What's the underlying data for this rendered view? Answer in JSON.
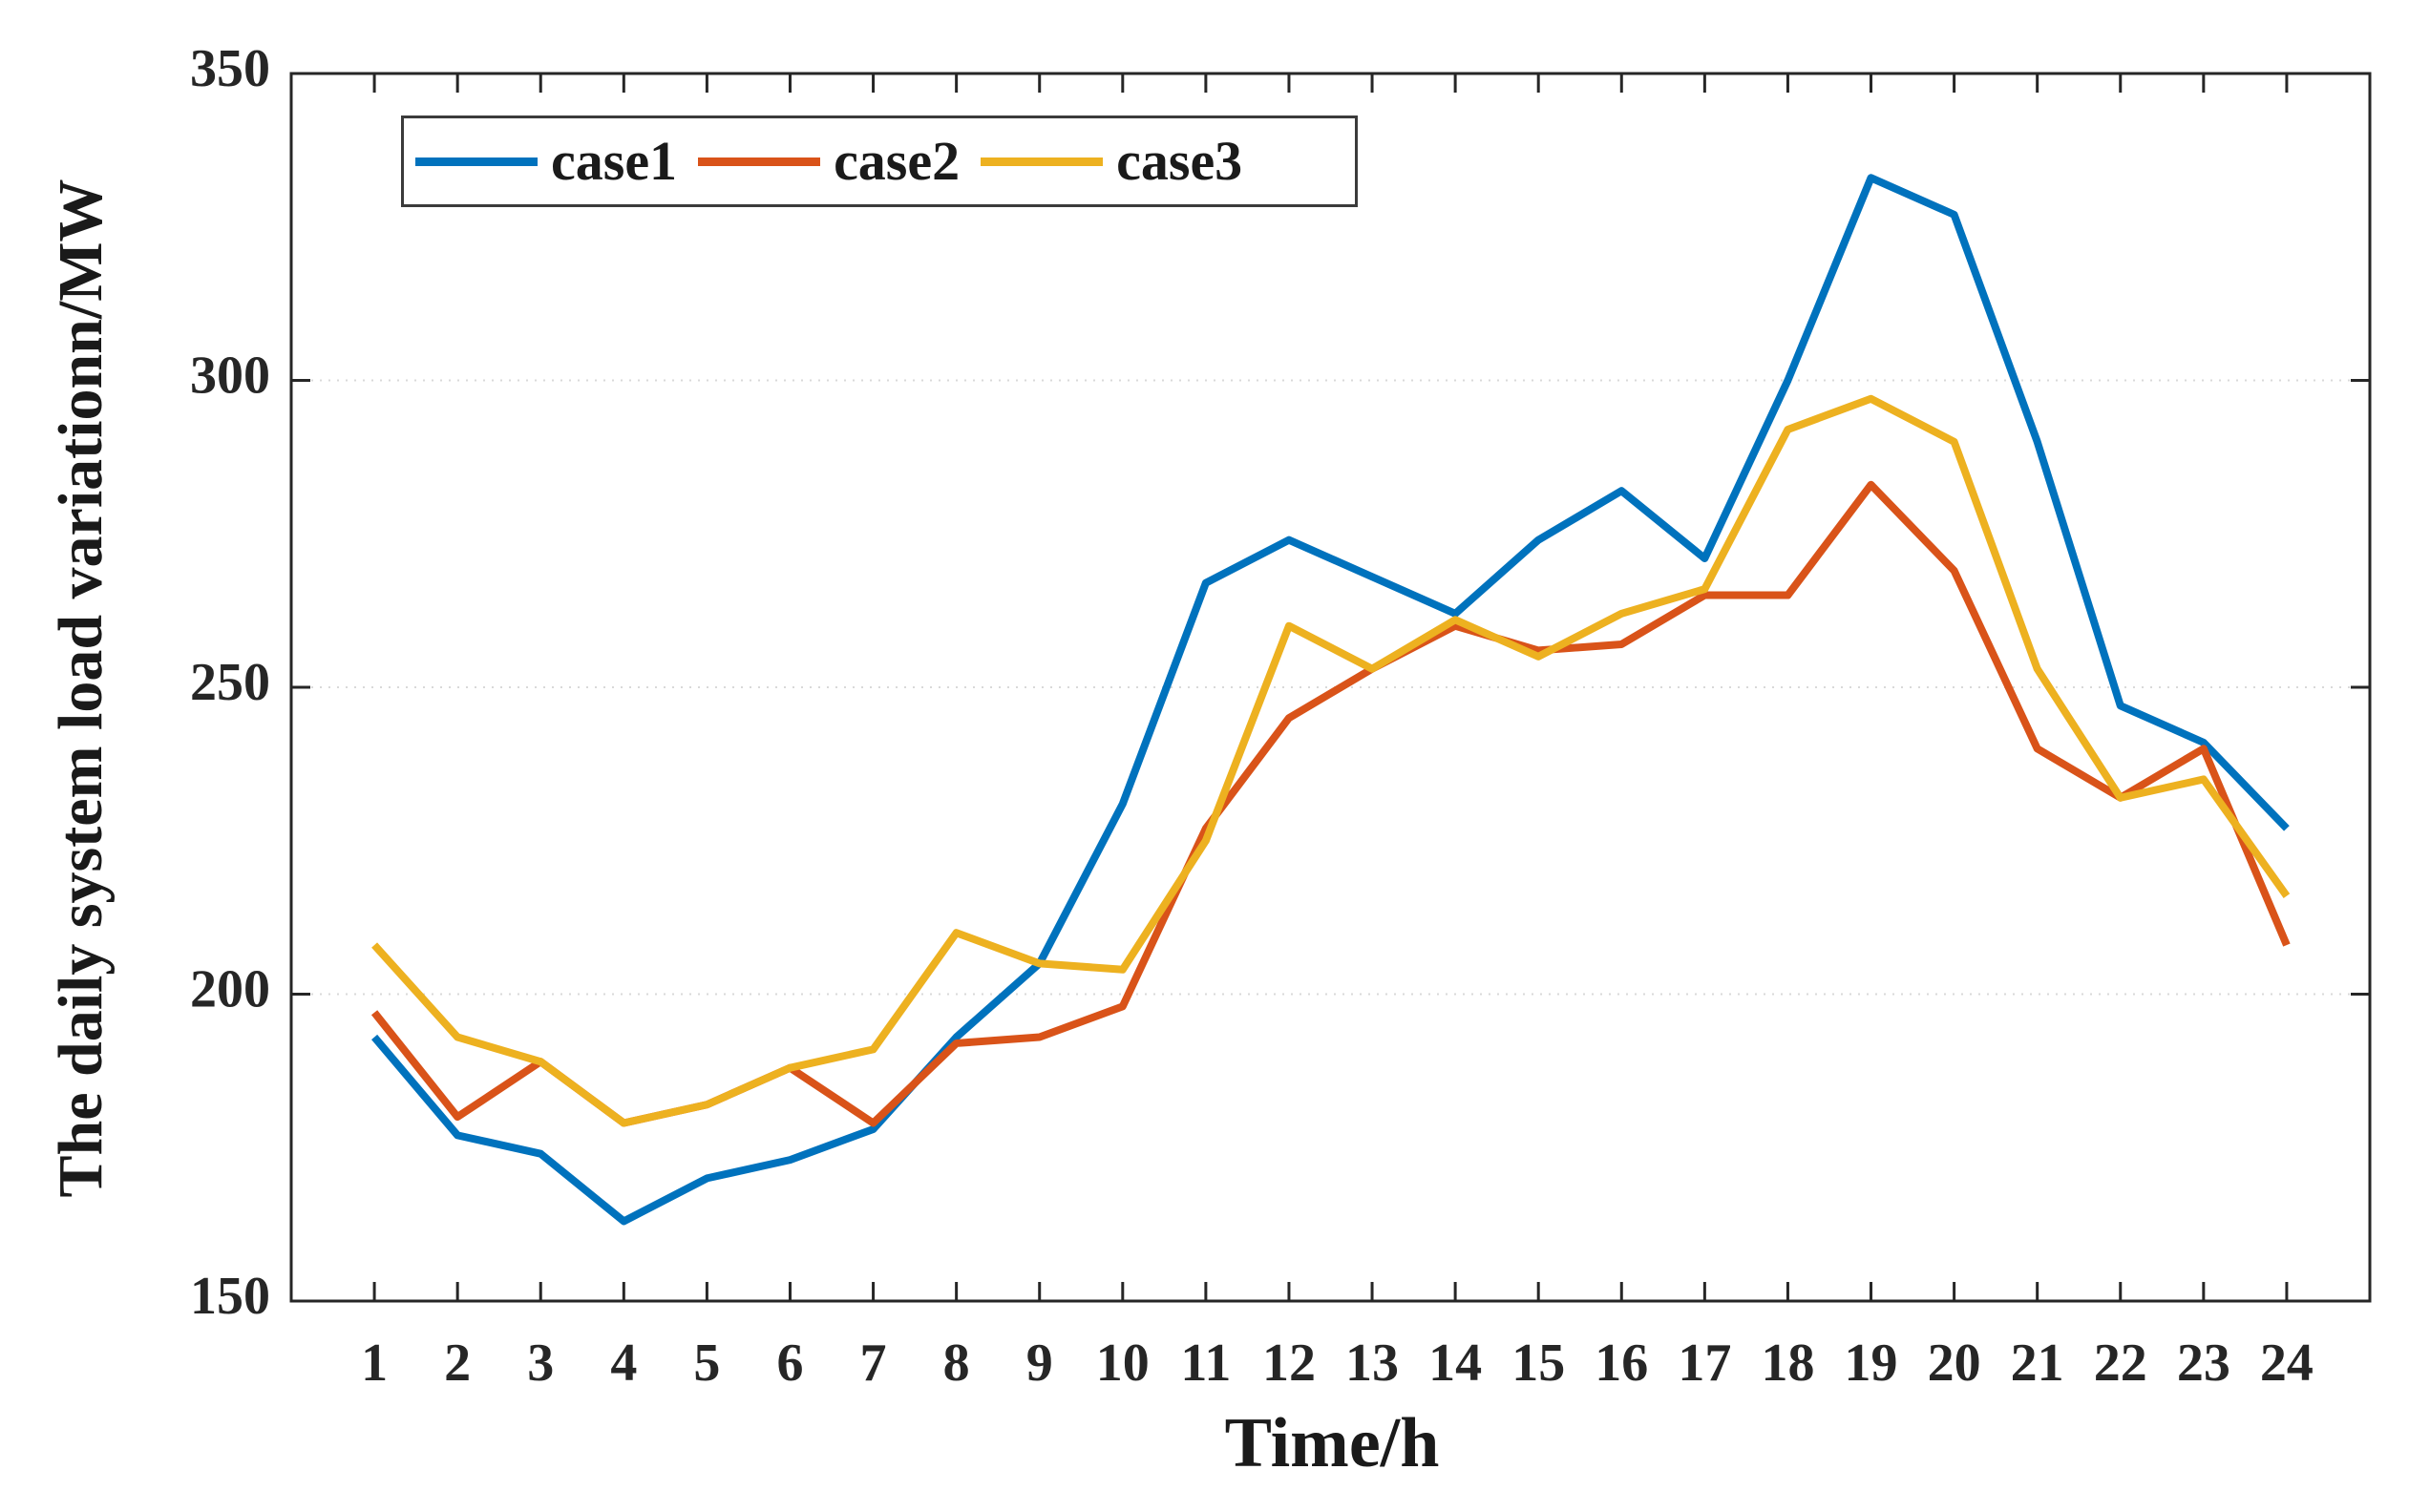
{
  "figure": {
    "background": "#ffffff",
    "frame_color": "#262626",
    "grid_color": "#d9d9d9",
    "text_color": "#1a1a1a"
  },
  "chart_data": {
    "type": "line",
    "title": "",
    "xlabel": "Time/h",
    "ylabel": "The daily system load variationn/MW",
    "x": [
      1,
      2,
      3,
      4,
      5,
      6,
      7,
      8,
      9,
      10,
      11,
      12,
      13,
      14,
      15,
      16,
      17,
      18,
      19,
      20,
      21,
      22,
      23,
      24
    ],
    "x_ticks": [
      1,
      2,
      3,
      4,
      5,
      6,
      7,
      8,
      9,
      10,
      11,
      12,
      13,
      14,
      15,
      16,
      17,
      18,
      19,
      20,
      21,
      22,
      23,
      24
    ],
    "y_ticks": [
      150,
      200,
      250,
      300,
      350
    ],
    "grid_y": [
      200,
      250,
      300
    ],
    "xlim": [
      0,
      25
    ],
    "ylim": [
      150,
      350
    ],
    "grid": "horizontal-dotted",
    "legend_position": "top-left-inside",
    "series": [
      {
        "name": "case1",
        "color": "#0072BD",
        "values": [
          193,
          177,
          174,
          163,
          170,
          173,
          178,
          193,
          205,
          231,
          267,
          274,
          268,
          262,
          274,
          282,
          271,
          300,
          333,
          327,
          290,
          247,
          241,
          227
        ]
      },
      {
        "name": "case2",
        "color": "#D95319",
        "values": [
          197,
          180,
          189,
          179,
          182,
          188,
          179,
          192,
          193,
          198,
          227,
          245,
          253,
          260,
          256,
          257,
          265,
          265,
          283,
          269,
          240,
          232,
          240,
          208
        ]
      },
      {
        "name": "case3",
        "color": "#EDB120",
        "values": [
          208,
          193,
          189,
          179,
          182,
          188,
          191,
          210,
          205,
          204,
          225,
          260,
          253,
          261,
          255,
          262,
          266,
          292,
          297,
          290,
          253,
          232,
          235,
          216
        ]
      }
    ]
  }
}
